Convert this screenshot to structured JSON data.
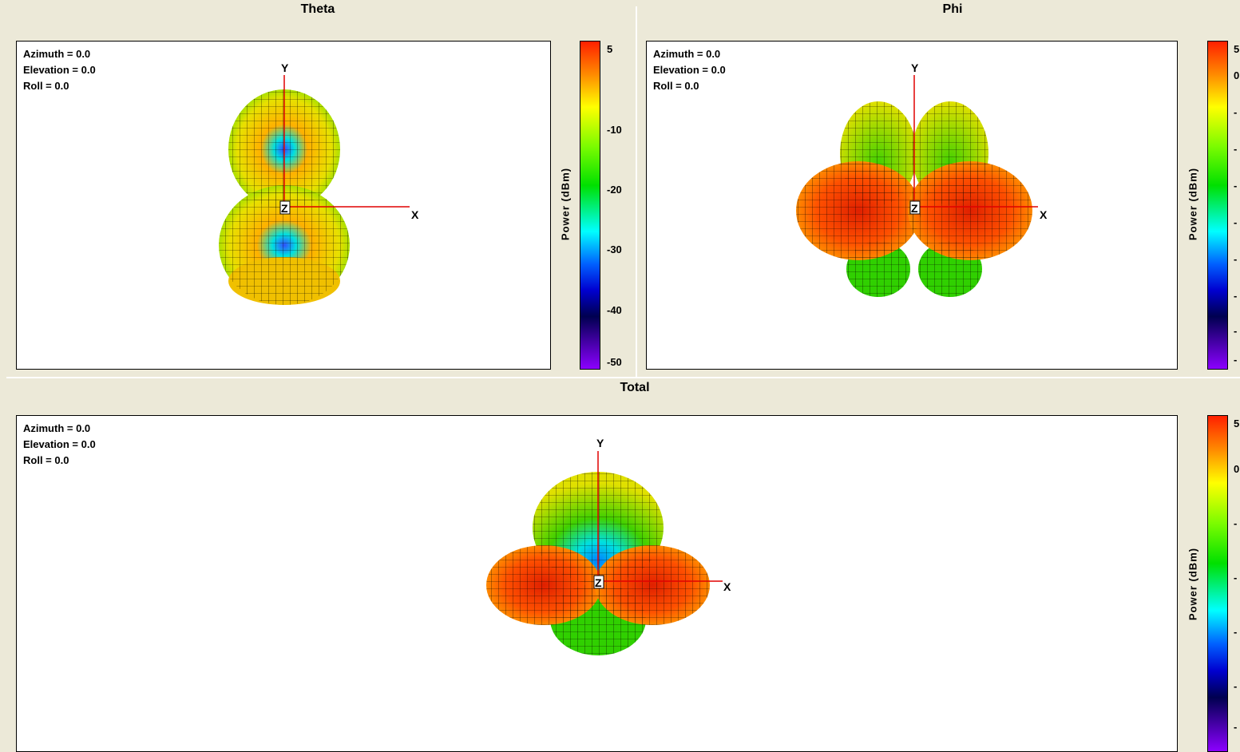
{
  "panels": {
    "theta": {
      "title": "Theta",
      "orientation": {
        "azimuth": "Azimuth = 0.0",
        "elevation": "Elevation = 0.0",
        "roll": "Roll = 0.0"
      },
      "colorbar": {
        "label": "Power (dBm)",
        "ticks": [
          "5",
          "-10",
          "-20",
          "-30",
          "-40",
          "-50"
        ]
      },
      "axes": {
        "y": "Y",
        "x": "X",
        "z": "Z"
      }
    },
    "phi": {
      "title": "Phi",
      "orientation": {
        "azimuth": "Azimuth = 0.0",
        "elevation": "Elevation = 0.0",
        "roll": "Roll = 0.0"
      },
      "colorbar": {
        "label": "Power (dBm)",
        "ticks": [
          "5",
          "0",
          "-",
          "-",
          "-",
          "-",
          "-",
          "-",
          "-",
          "-"
        ]
      },
      "axes": {
        "y": "Y",
        "x": "X",
        "z": "Z"
      }
    },
    "total": {
      "title": "Total",
      "orientation": {
        "azimuth": "Azimuth = 0.0",
        "elevation": "Elevation = 0.0",
        "roll": "Roll = 0.0"
      },
      "colorbar": {
        "label": "Power (dBm)",
        "ticks": [
          "5",
          "0",
          "-",
          "-",
          "-",
          "-",
          "-"
        ]
      },
      "axes": {
        "y": "Y",
        "x": "X",
        "z": "Z"
      }
    }
  },
  "colors": {
    "axis": "#e00000",
    "mesh": "#000000",
    "background": "#ece9d8"
  }
}
